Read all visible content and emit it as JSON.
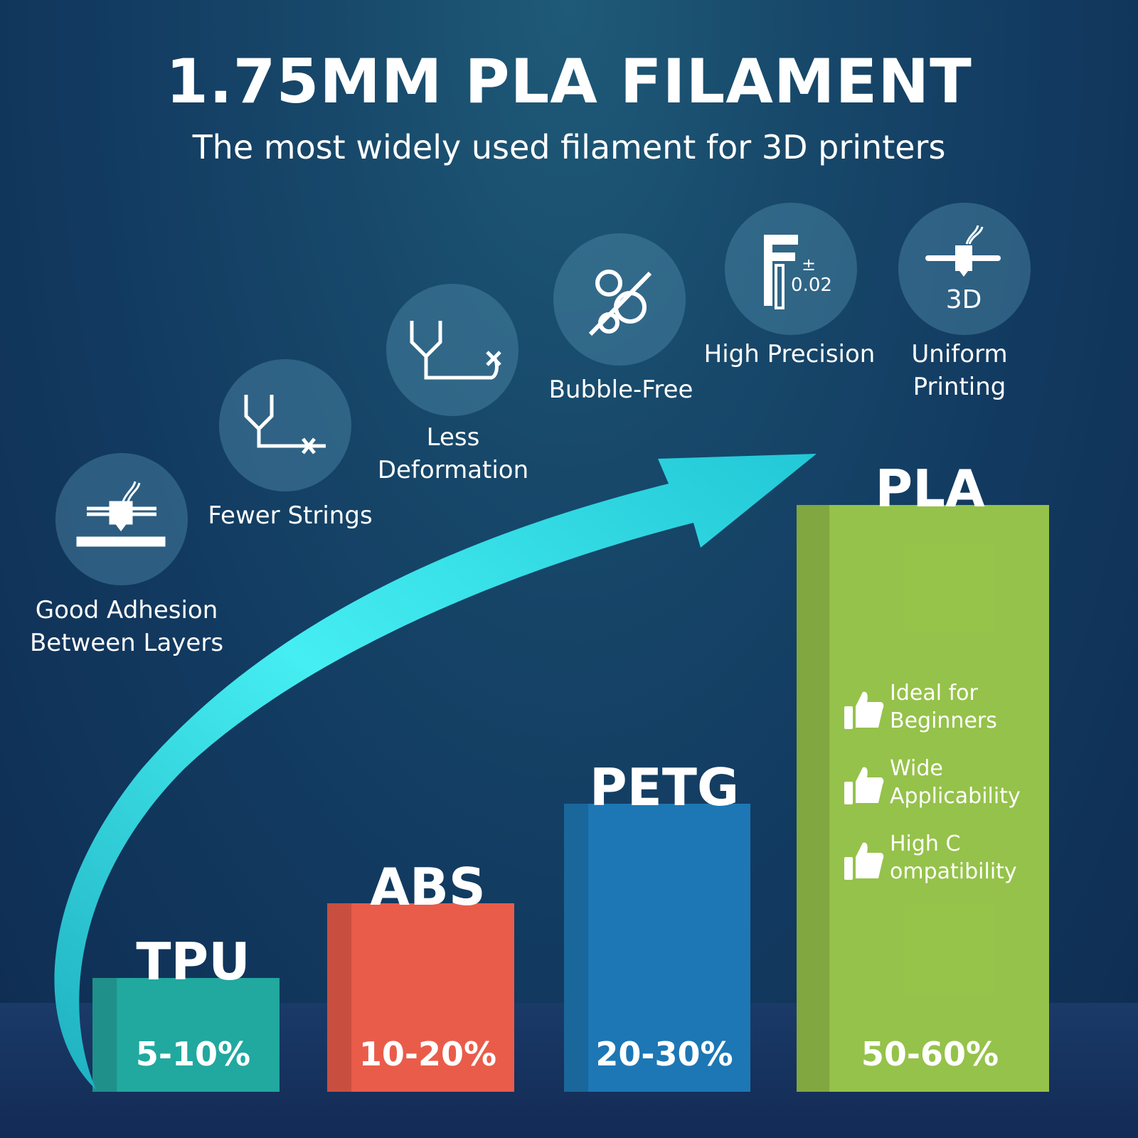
{
  "header": {
    "title": "1.75MM PLA FILAMENT",
    "subtitle": "The most widely used filament for 3D printers"
  },
  "features": [
    {
      "icon": "nozzle-bed-icon",
      "lines": [
        "Good Adhesion",
        "Between Layers"
      ]
    },
    {
      "icon": "fewer-strings-icon",
      "lines": [
        "Fewer Strings"
      ]
    },
    {
      "icon": "less-deformation-icon",
      "lines": [
        "Less",
        "Deformation"
      ]
    },
    {
      "icon": "bubble-free-icon",
      "lines": [
        "Bubble-Free"
      ]
    },
    {
      "icon": "caliper-icon",
      "icon_text": {
        "pm": "±",
        "value": "0.02"
      },
      "lines": [
        "High Precision"
      ]
    },
    {
      "icon": "3d-printer-head-icon",
      "icon_text": {
        "label": "3D"
      },
      "lines": [
        "Uniform",
        "Printing"
      ]
    }
  ],
  "pla_benefits": [
    {
      "icon": "thumbs-up-icon",
      "text": "Ideal for\nBeginners"
    },
    {
      "icon": "thumbs-up-icon",
      "text": "Wide\nApplicability"
    },
    {
      "icon": "thumbs-up-icon",
      "text": "High C\nompatibility"
    }
  ],
  "chart_data": {
    "type": "bar",
    "categories": [
      "TPU",
      "ABS",
      "PETG",
      "PLA"
    ],
    "value_labels": [
      "5-10%",
      "10-20%",
      "20-30%",
      "50-60%"
    ],
    "ranges": [
      [
        5,
        10
      ],
      [
        10,
        20
      ],
      [
        20,
        30
      ],
      [
        50,
        60
      ]
    ],
    "colors": [
      "#14a39a",
      "#e8523f",
      "#0f6fb0",
      "#8fbf3f"
    ],
    "trend_arrow_color": "#3fe3ea",
    "title": "",
    "xlabel": "",
    "ylabel": ""
  }
}
